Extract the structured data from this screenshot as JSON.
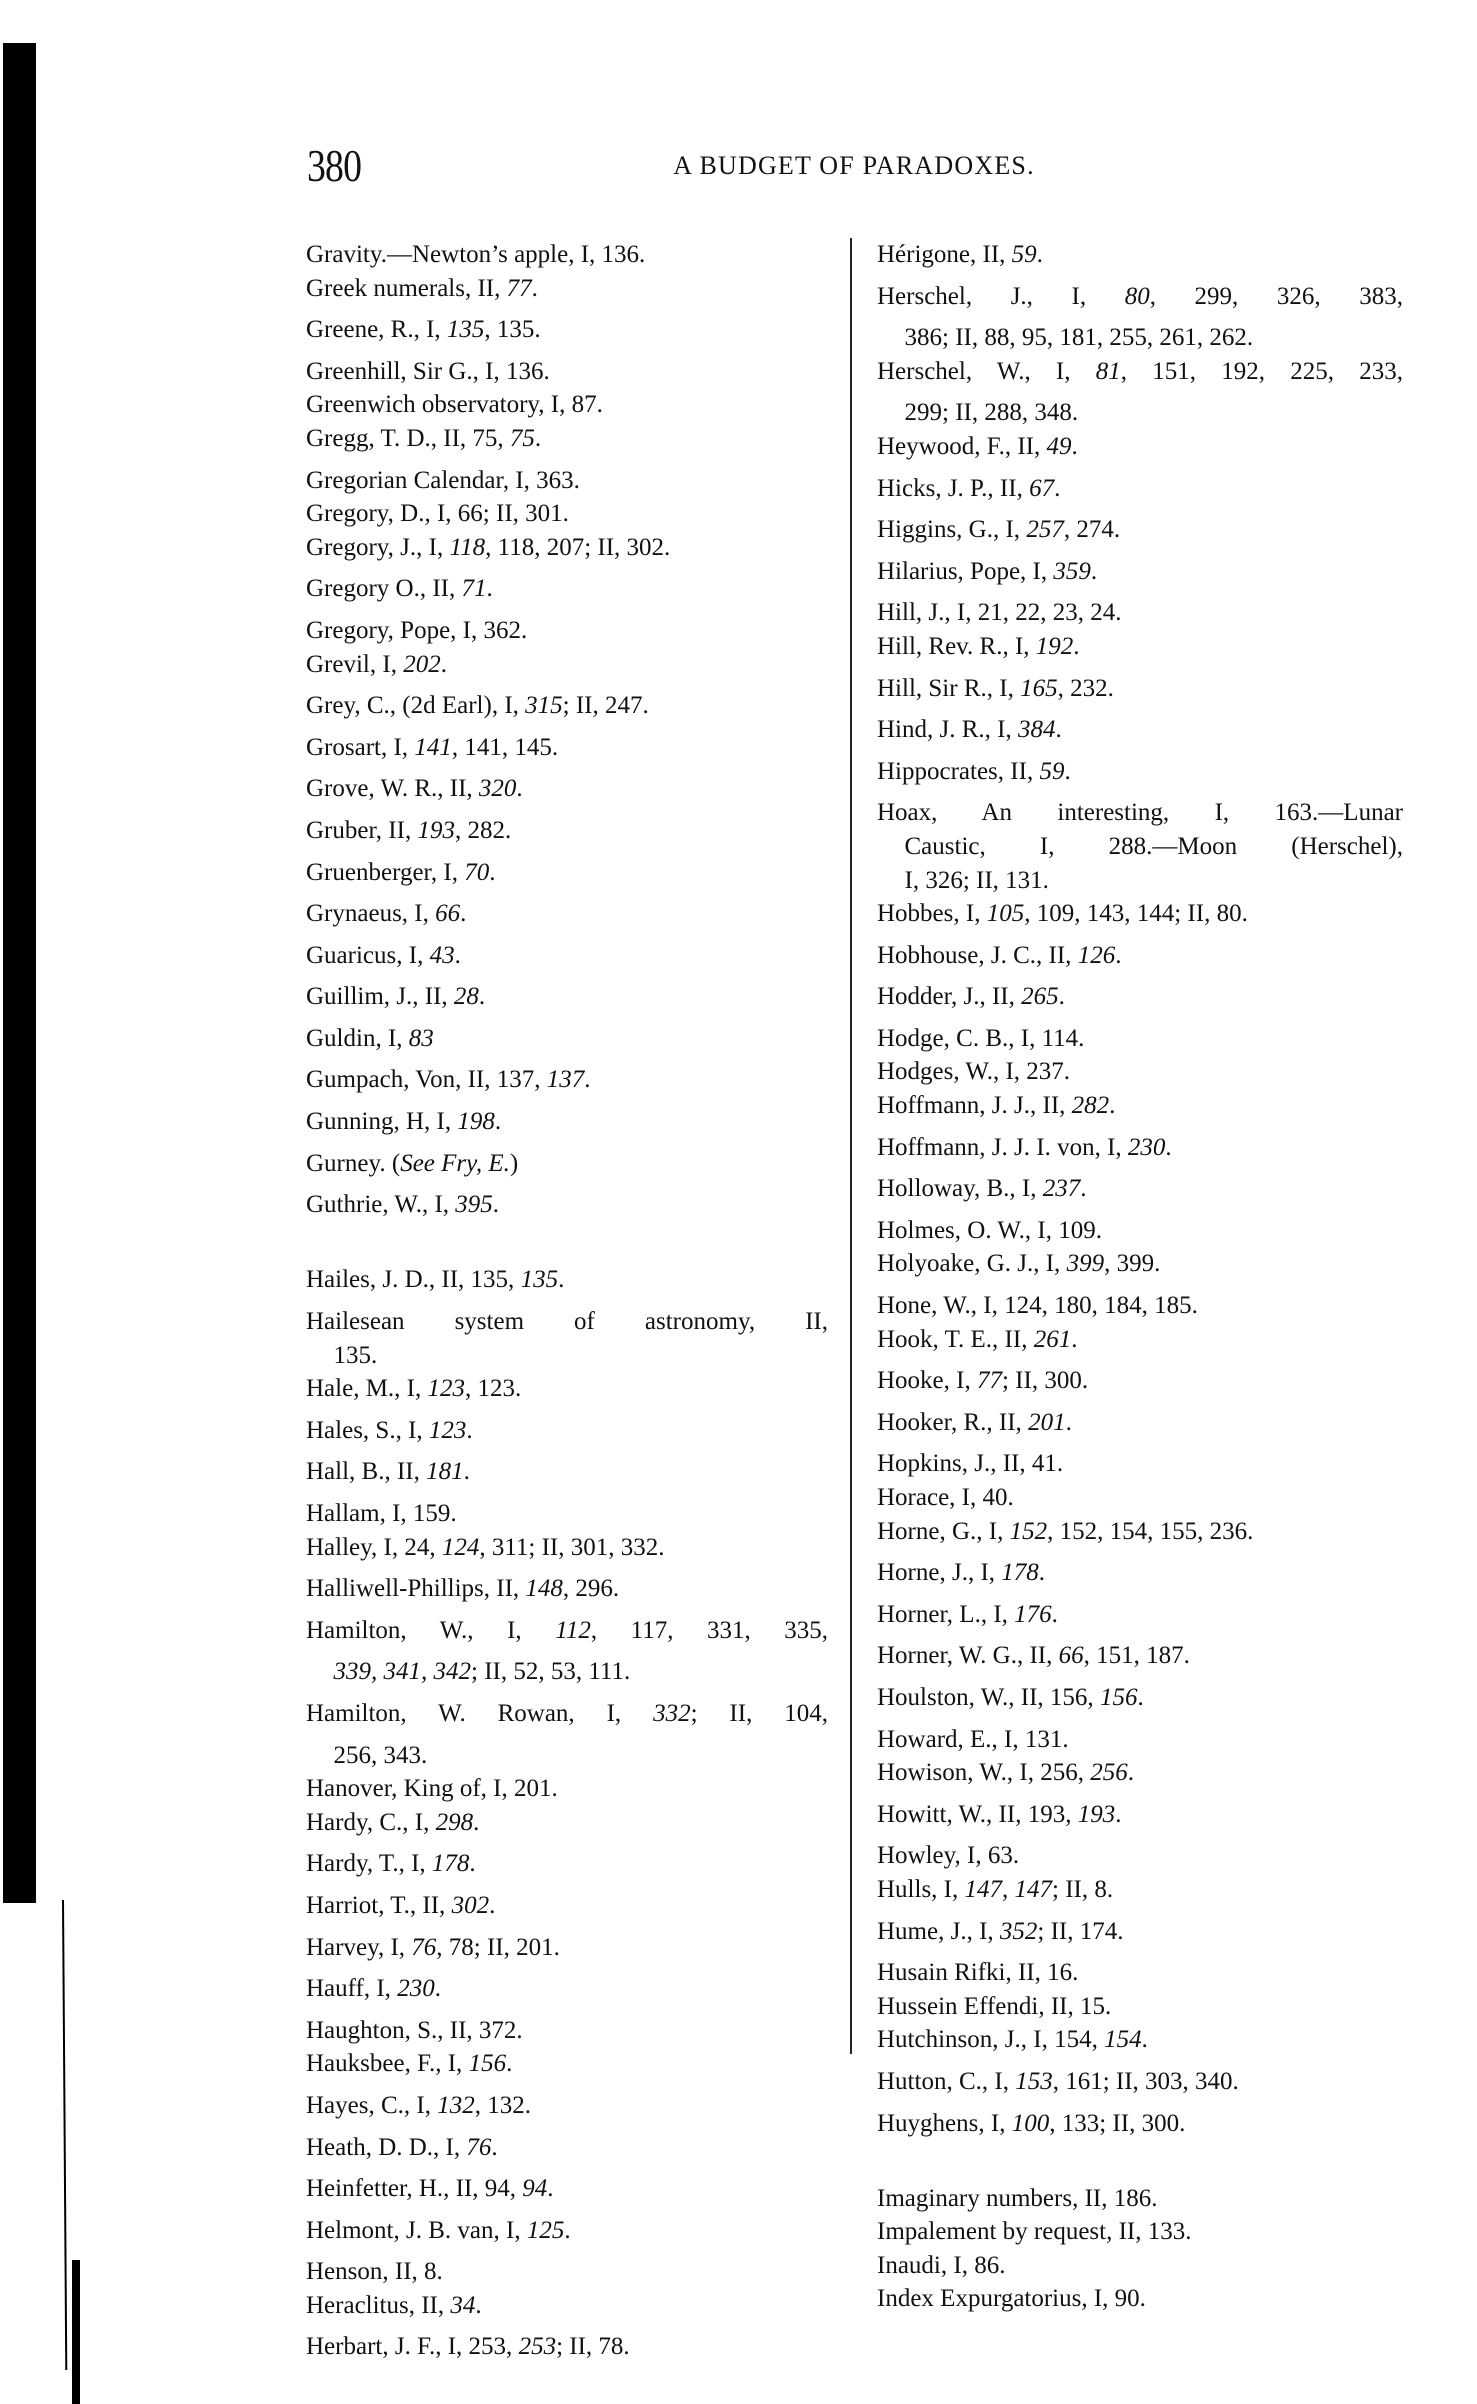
{
  "page": {
    "page_number": "380",
    "running_head": "A BUDGET OF PARADOXES."
  },
  "columns": {
    "left": [
      [
        "Gravity.—Newton’s apple, I, 136."
      ],
      [
        "Greek numerals, II, *77*."
      ],
      [
        "Greene, R., I, *135*, 135."
      ],
      [
        "Greenhill, Sir G., I, 136."
      ],
      [
        "Greenwich observatory, I, 87."
      ],
      [
        "Gregg, T. D., II, 75, *75*."
      ],
      [
        "Gregorian Calendar, I, 363."
      ],
      [
        "Gregory, D., I, 66; II, 301."
      ],
      [
        "Gregory, J., I, *118*, 118, 207; II, 302."
      ],
      [
        "Gregory O., II, *71*."
      ],
      [
        "Gregory, Pope, I, 362."
      ],
      [
        "Grevil, I, *202*."
      ],
      [
        "Grey, C., (2d Earl), I, *315*; II, 247."
      ],
      [
        "Grosart, I, *141*, 141, 145."
      ],
      [
        "Grove, W. R., II, *320*."
      ],
      [
        "Gruber, II, *193*, 282."
      ],
      [
        "Gruenberger, I, *70*."
      ],
      [
        "Grynaeus, I, *66*."
      ],
      [
        "Guaricus, I, *43*."
      ],
      [
        "Guillim, J., II, *28*."
      ],
      [
        "Guldin, I, *83*"
      ],
      [
        "Gumpach, Von, II, 137, *137*."
      ],
      [
        "Gunning, H, I, *198*."
      ],
      [
        "Gurney. (*See Fry, E.*)"
      ],
      [
        "Guthrie, W., I, *395*."
      ],
      [],
      [
        "Hailes, J. D., II, 135, *135*."
      ],
      [
        "Hailesean system of astronomy, II,",
        "135."
      ],
      [
        "Hale, M., I, *123*, 123."
      ],
      [
        "Hales, S., I, *123*."
      ],
      [
        "Hall, B., II, *181*."
      ],
      [
        "Hallam, I, 159."
      ],
      [
        "Halley, I, 24, *124*, 311; II, 301, 332."
      ],
      [
        "Halliwell-Phillips, II, *148*, 296."
      ],
      [
        "Hamilton, W., I, *112*, 117, 331, 335,",
        "*339, 341, 342*; II, 52, 53, 111."
      ],
      [
        "Hamilton, W. Rowan, I, *332*; II, 104,",
        "256, 343."
      ],
      [
        "Hanover, King of, I, 201."
      ],
      [
        "Hardy, C., I, *298*."
      ],
      [
        "Hardy, T., I, *178*."
      ],
      [
        "Harriot, T., II, *302*."
      ],
      [
        "Harvey, I, *76*, 78; II, 201."
      ],
      [
        "Hauff, I, *230*."
      ],
      [
        "Haughton, S., II, 372."
      ],
      [
        "Hauksbee, F., I, *156*."
      ],
      [
        "Hayes, C., I, *132*, 132."
      ],
      [
        "Heath, D. D., I, *76*."
      ],
      [
        "Heinfetter, H., II, 94, *94*."
      ],
      [
        "Helmont, J. B. van, I, *125*."
      ],
      [
        "Henson, II, 8."
      ],
      [
        "Heraclitus, II, *34*."
      ],
      [
        "Herbart, J. F., I, 253, *253*; II, 78."
      ]
    ],
    "right": [
      [
        "Hérigone, II, *59*."
      ],
      [
        "Herschel, J., I, *80*, 299, 326, 383,",
        "386; II, 88, 95, 181, 255, 261, 262."
      ],
      [
        "Herschel, W., I, *81*, 151, 192, 225, 233,",
        "299; II, 288, 348."
      ],
      [
        "Heywood, F., II, *49*."
      ],
      [
        "Hicks, J. P., II, *67*."
      ],
      [
        "Higgins, G., I, *257*, 274."
      ],
      [
        "Hilarius, Pope, I, *359*."
      ],
      [
        "Hill, J., I, 21, 22, 23, 24."
      ],
      [
        "Hill, Rev. R., I, *192*."
      ],
      [
        "Hill, Sir R., I, *165*, 232."
      ],
      [
        "Hind, J. R., I, *384*."
      ],
      [
        "Hippocrates, II, *59*."
      ],
      [
        "Hoax, An interesting, I, 163.—Lunar",
        "Caustic, I, 288.—Moon (Herschel),",
        "I, 326; II, 131."
      ],
      [
        "Hobbes, I, *105*, 109, 143, 144; II, 80."
      ],
      [
        "Hobhouse, J. C., II, *126*."
      ],
      [
        "Hodder, J., II, *265*."
      ],
      [
        "Hodge, C. B., I, 114."
      ],
      [
        "Hodges, W., I, 237."
      ],
      [
        "Hoffmann, J. J., II, *282*."
      ],
      [
        "Hoffmann, J. J. I. von, I, *230*."
      ],
      [
        "Holloway, B., I, *237*."
      ],
      [
        "Holmes, O. W., I, 109."
      ],
      [
        "Holyoake, G. J., I, *399*, 399."
      ],
      [
        "Hone, W., I, 124, 180, 184, 185."
      ],
      [
        "Hook, T. E., II, *261*."
      ],
      [
        "Hooke, I, *77*; II, 300."
      ],
      [
        "Hooker, R., II, *201*."
      ],
      [
        "Hopkins, J., II, 41."
      ],
      [
        "Horace, I, 40."
      ],
      [
        "Horne, G., I, *152*, 152, 154, 155, 236."
      ],
      [
        "Horne, J., I, *178*."
      ],
      [
        "Horner, L., I, *176*."
      ],
      [
        "Horner, W. G., II, *66*, 151, 187."
      ],
      [
        "Houlston, W., II, 156, *156*."
      ],
      [
        "Howard, E., I, 131."
      ],
      [
        "Howison, W., I, 256, *256*."
      ],
      [
        "Howitt, W., II, 193, *193*."
      ],
      [
        "Howley, I, 63."
      ],
      [
        "Hulls, I, *147*, *147*; II, 8."
      ],
      [
        "Hume, J., I, *352*; II, 174."
      ],
      [
        "Husain Rifki, II, 16."
      ],
      [
        "Hussein Effendi, II, 15."
      ],
      [
        "Hutchinson, J., I, 154, *154*."
      ],
      [
        "Hutton, C., I, *153*, 161; II, 303, 340."
      ],
      [
        "Huyghens, I, *100*, 133; II, 300."
      ],
      [],
      [
        "Imaginary numbers, II, 186."
      ],
      [
        "Impalement by request, II, 133."
      ],
      [
        "Inaudi, I, 86."
      ],
      [
        "Index Expurgatorius, I, 90."
      ]
    ]
  }
}
